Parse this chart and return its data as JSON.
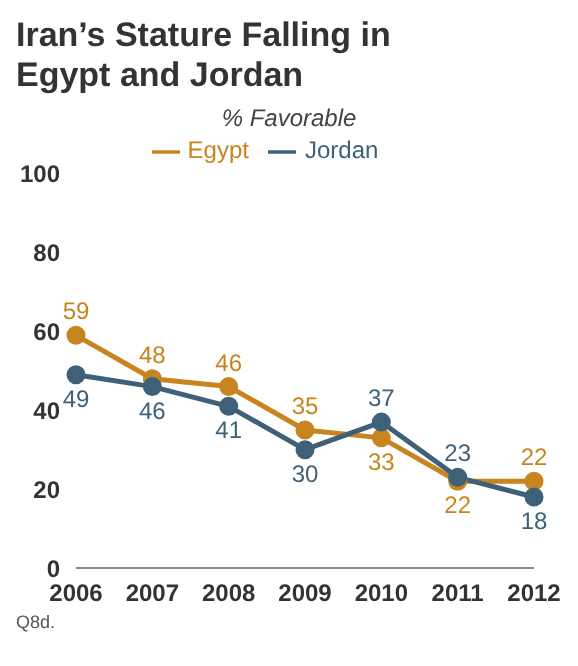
{
  "chart_data": {
    "type": "line",
    "title": "Iran’s Stature Falling in Egypt and Jordan",
    "subtitle": "% Favorable",
    "categories": [
      "2006",
      "2007",
      "2008",
      "2009",
      "2010",
      "2011",
      "2012"
    ],
    "series": [
      {
        "name": "Egypt",
        "color": "#c8841f",
        "values": [
          59,
          48,
          46,
          35,
          33,
          22,
          22
        ]
      },
      {
        "name": "Jordan",
        "color": "#3f6079",
        "values": [
          49,
          46,
          41,
          30,
          37,
          23,
          18
        ]
      }
    ],
    "ylim": [
      0,
      100
    ],
    "yticks": [
      0,
      20,
      40,
      60,
      80,
      100
    ],
    "grid": false,
    "legend": "top",
    "marker": "circle",
    "line_style": "solid",
    "data_labels": true,
    "annotations": [
      "Q8d."
    ]
  }
}
